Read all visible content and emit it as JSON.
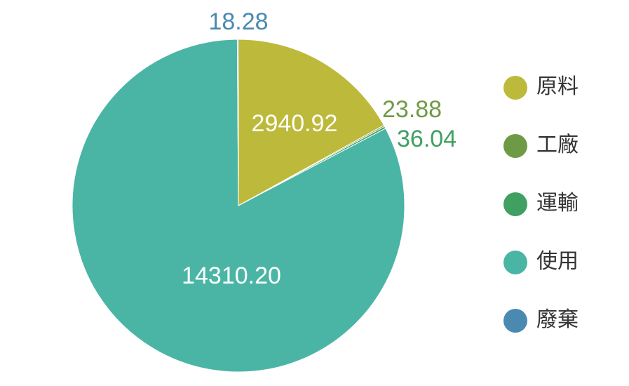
{
  "chart_data": {
    "type": "pie",
    "categories": [
      "原料",
      "工廠",
      "運輸",
      "使用",
      "廢棄"
    ],
    "values": [
      2940.92,
      23.88,
      36.04,
      14310.2,
      18.28
    ],
    "value_labels": [
      "2940.92",
      "23.88",
      "36.04",
      "14310.20",
      "18.28"
    ],
    "colors": [
      "#bdb93a",
      "#6f9a45",
      "#3fa062",
      "#4ab5a5",
      "#4a8ab0"
    ],
    "legend": "right"
  }
}
